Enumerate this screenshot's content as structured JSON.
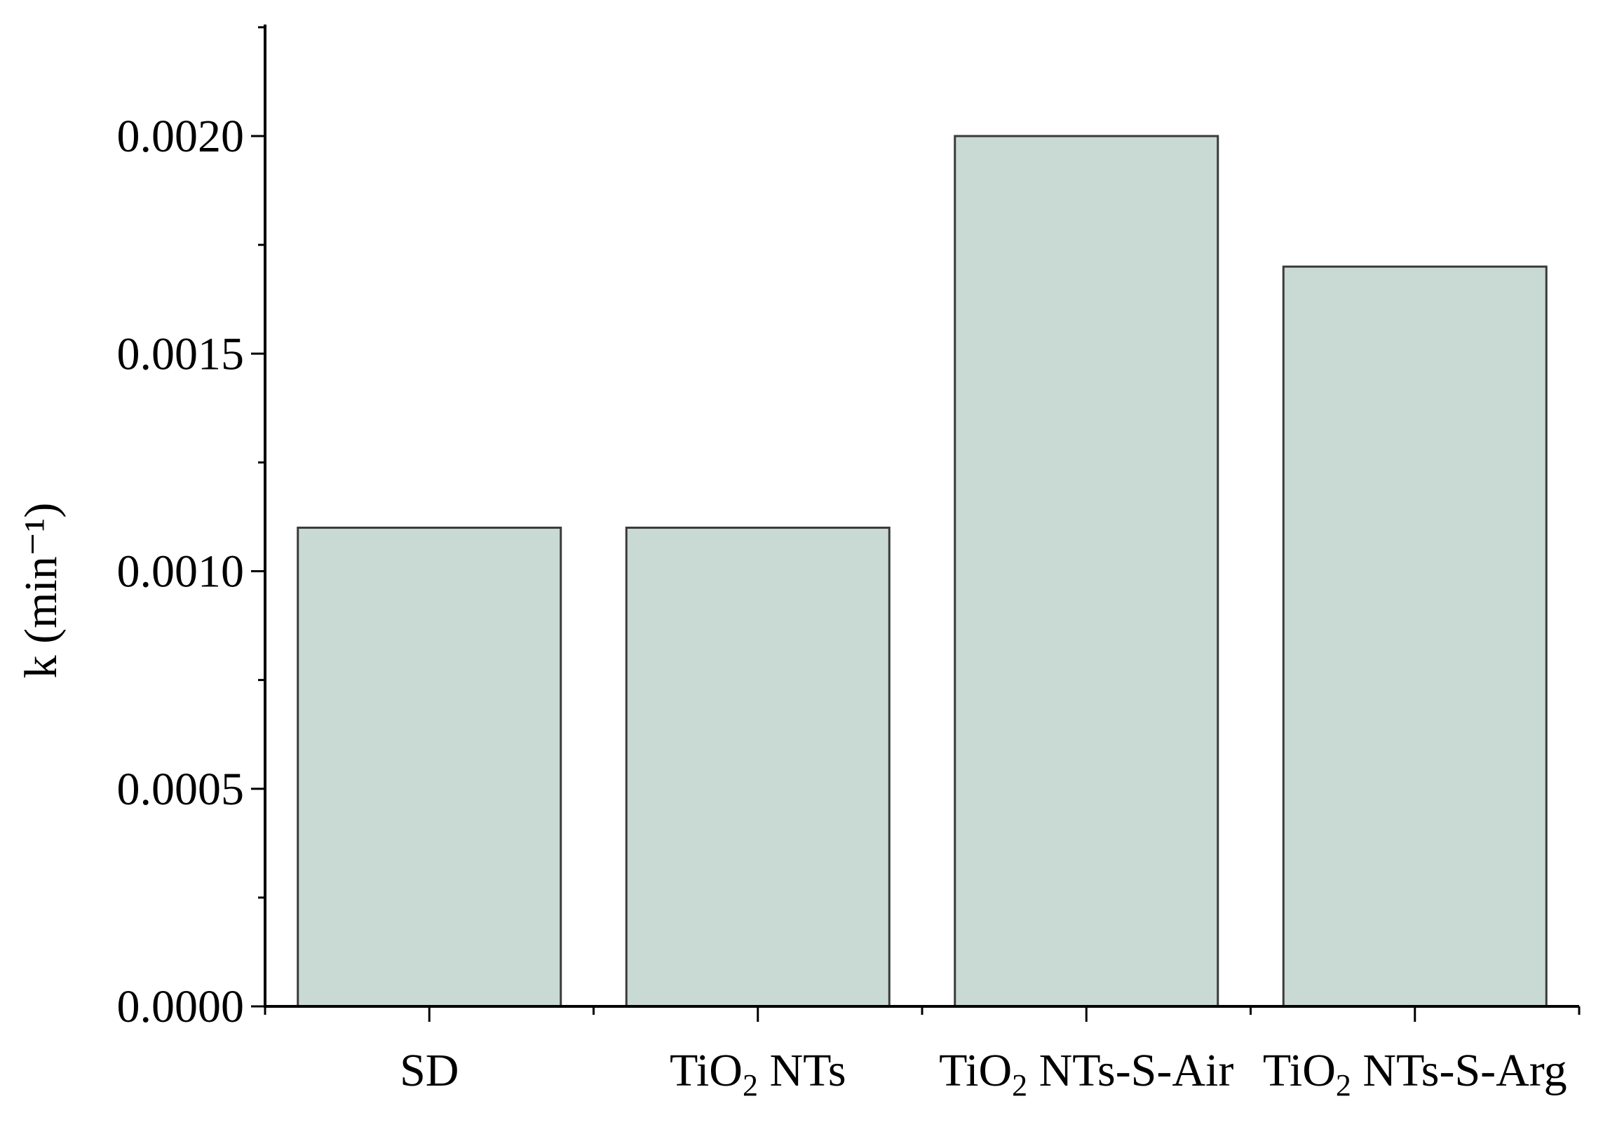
{
  "chart_data": {
    "type": "bar",
    "title": "",
    "xlabel": "",
    "ylabel": "k (min⁻¹)",
    "categories": [
      {
        "label": "SD",
        "base": "SD",
        "sub": "",
        "rest": ""
      },
      {
        "label": "TiO₂ NTs",
        "base": "TiO",
        "sub": "2",
        "rest": " NTs"
      },
      {
        "label": "TiO₂ NTs-S-Air",
        "base": "TiO",
        "sub": "2",
        "rest": " NTs-S-Air"
      },
      {
        "label": "TiO₂ NTs-S-Arg",
        "base": "TiO",
        "sub": "2",
        "rest": " NTs-S-Arg"
      }
    ],
    "values": [
      0.0011,
      0.0011,
      0.002,
      0.0017
    ],
    "ylim": [
      0,
      0.00225
    ],
    "yticks": [
      "0.0000",
      "0.0005",
      "0.0010",
      "0.0015",
      "0.0020"
    ],
    "ytick_values": [
      0,
      0.0005,
      0.001,
      0.0015,
      0.002
    ],
    "grid": false,
    "colors": {
      "bar_fill": "#c9d9d3",
      "bar_stroke": "#3a3a3a",
      "axis": "#000000"
    }
  }
}
